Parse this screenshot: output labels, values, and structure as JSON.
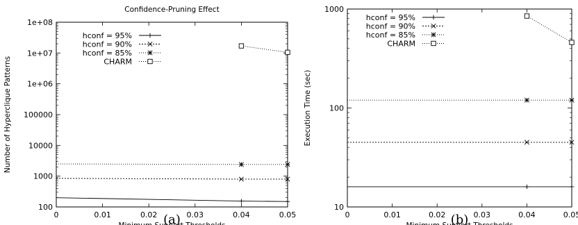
{
  "chart_data": [
    {
      "type": "line",
      "title": "Confidence-Pruning Effect",
      "xlabel": "Minimum Support Thresholds",
      "ylabel": "Number of Hyperclique Patterns",
      "caption": "(a)",
      "yscale": "log",
      "xlim": [
        0,
        0.05
      ],
      "ylim": [
        100,
        100000000
      ],
      "xticks": [
        0,
        0.01,
        0.02,
        0.03,
        0.04,
        0.05
      ],
      "xtick_labels": [
        "0",
        "0.01",
        "0.02",
        "0.03",
        "0.04",
        "0.05"
      ],
      "yticks": [
        100,
        1000,
        10000,
        100000,
        1000000,
        10000000,
        100000000
      ],
      "ytick_labels": [
        "100",
        "1000",
        "10000",
        "100000",
        "1e+06",
        "1e+07",
        "1e+08"
      ],
      "legend_position": "top-left",
      "series": [
        {
          "name": "hconf = 95%",
          "marker": "plus",
          "dash": "",
          "x": [
            0,
            0.04,
            0.05
          ],
          "y": [
            200,
            155,
            150
          ]
        },
        {
          "name": "hconf = 90%",
          "marker": "cross",
          "dash": "2,2",
          "x": [
            0,
            0.04,
            0.05
          ],
          "y": [
            850,
            800,
            800
          ]
        },
        {
          "name": "hconf = 85%",
          "marker": "star",
          "dash": "1,2",
          "x": [
            0,
            0.04,
            0.05
          ],
          "y": [
            2500,
            2400,
            2400
          ]
        },
        {
          "name": "CHARM",
          "marker": "square",
          "dash": "1,2",
          "x": [
            0.04,
            0.05
          ],
          "y": [
            17000000,
            10500000
          ]
        }
      ]
    },
    {
      "type": "line",
      "title": "",
      "xlabel": "Minimum Support Thresholds",
      "ylabel": "Execution Time (sec)",
      "caption": "(b)",
      "yscale": "log",
      "xlim": [
        0,
        0.05
      ],
      "ylim": [
        10,
        1000
      ],
      "xticks": [
        0,
        0.01,
        0.02,
        0.03,
        0.04,
        0.05
      ],
      "xtick_labels": [
        "0",
        "0.01",
        "0.02",
        "0.03",
        "0.04",
        "0.05"
      ],
      "yticks": [
        10,
        100,
        1000
      ],
      "ytick_labels": [
        "10",
        "100",
        "1000"
      ],
      "legend_position": "top-left",
      "series": [
        {
          "name": "hconf = 95%",
          "marker": "plus",
          "dash": "",
          "x": [
            0,
            0.04,
            0.05
          ],
          "y": [
            16,
            16,
            16
          ]
        },
        {
          "name": "hconf = 90%",
          "marker": "cross",
          "dash": "2,2",
          "x": [
            0,
            0.04,
            0.05
          ],
          "y": [
            45,
            45,
            45
          ]
        },
        {
          "name": "hconf = 85%",
          "marker": "star",
          "dash": "1,2",
          "x": [
            0,
            0.04,
            0.05
          ],
          "y": [
            120,
            120,
            120
          ]
        },
        {
          "name": "CHARM",
          "marker": "square",
          "dash": "1,2",
          "x": [
            0.04,
            0.05
          ],
          "y": [
            850,
            460
          ]
        }
      ]
    }
  ]
}
